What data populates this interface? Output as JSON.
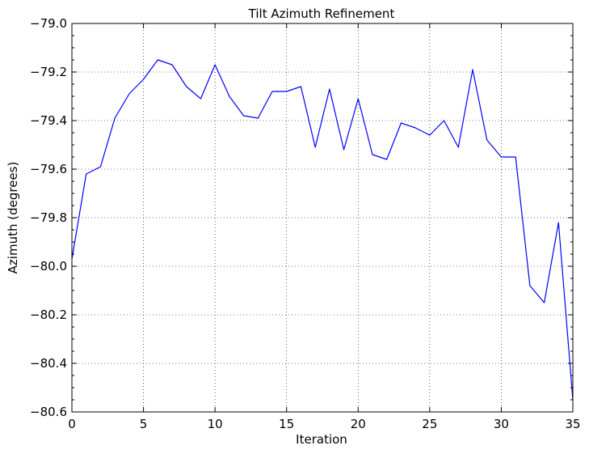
{
  "chart_data": {
    "type": "line",
    "title": "Tilt Azimuth Refinement",
    "xlabel": "Iteration",
    "ylabel": "Azimuth (degrees)",
    "xlim": [
      0,
      35
    ],
    "ylim": [
      -80.6,
      -79.0
    ],
    "xticks": [
      0,
      5,
      10,
      15,
      20,
      25,
      30,
      35
    ],
    "yticks": [
      -79.0,
      -79.2,
      -79.4,
      -79.6,
      -79.8,
      -80.0,
      -80.2,
      -80.4,
      -80.6
    ],
    "ytick_labels": [
      "−79.0",
      "−79.2",
      "−79.4",
      "−79.6",
      "−79.8",
      "−80.0",
      "−80.2",
      "−80.4",
      "−80.6"
    ],
    "grid": true,
    "legend": "none",
    "series": [
      {
        "color": "#0000ff",
        "x": [
          0,
          1,
          2,
          3,
          4,
          5,
          6,
          7,
          8,
          9,
          10,
          11,
          12,
          13,
          14,
          15,
          16,
          17,
          18,
          19,
          20,
          21,
          22,
          23,
          24,
          25,
          26,
          27,
          28,
          29,
          30,
          31,
          32,
          33,
          34,
          35
        ],
        "values": [
          -79.97,
          -79.62,
          -79.59,
          -79.39,
          -79.29,
          -79.23,
          -79.15,
          -79.17,
          -79.26,
          -79.31,
          -79.17,
          -79.3,
          -79.38,
          -79.39,
          -79.28,
          -79.28,
          -79.26,
          -79.51,
          -79.27,
          -79.52,
          -79.31,
          -79.54,
          -79.56,
          -79.41,
          -79.43,
          -79.46,
          -79.4,
          -79.51,
          -79.19,
          -79.48,
          -79.55,
          -79.55,
          -80.08,
          -80.15,
          -79.82,
          -80.55
        ]
      }
    ]
  }
}
